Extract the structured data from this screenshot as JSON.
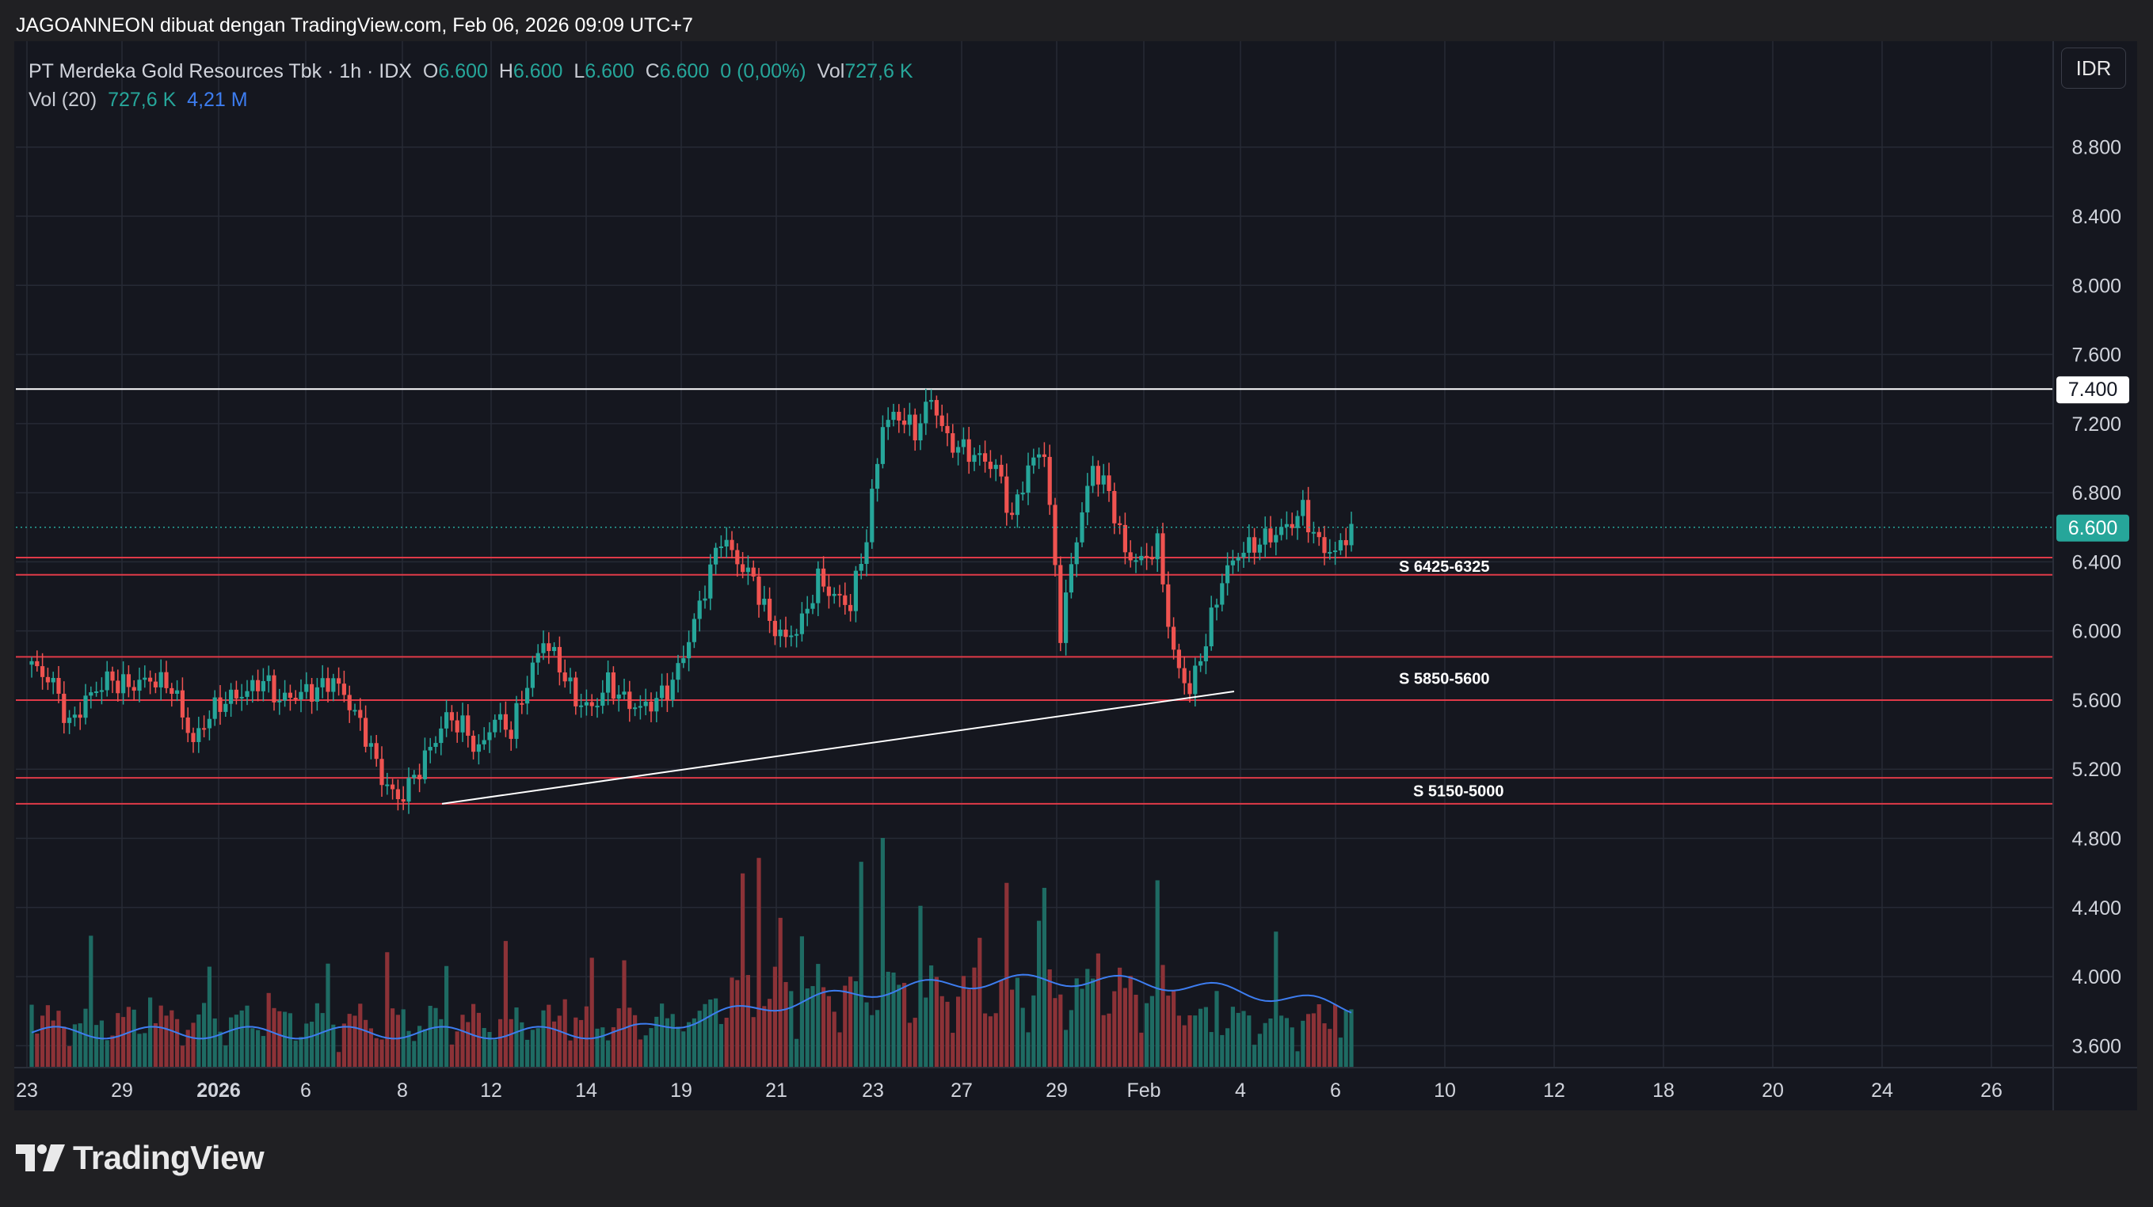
{
  "header": {
    "title": "JAGOANNEON dibuat dengan TradingView.com, Feb 06, 2026 09:09 UTC+7"
  },
  "legend": {
    "symbol": "PT Merdeka Gold Resources Tbk · 1h · IDX",
    "o_label": "O",
    "o_value": "6.600",
    "h_label": "H",
    "h_value": "6.600",
    "l_label": "L",
    "l_value": "6.600",
    "c_label": "C",
    "c_value": "6.600",
    "change": "0 (0,00%)",
    "vol_label": "Vol",
    "vol_value": "727,6 K",
    "vol20_label": "Vol (20)",
    "vol20_value": "727,6 K",
    "vol20_ma": "4,21 M"
  },
  "currency": "IDR",
  "logo": {
    "text": "TradingView",
    "icon": "tradingview-logo-icon"
  },
  "colors": {
    "up": "#26a69a",
    "down": "#ef5350",
    "ma": "#3d7df0",
    "support": "#e03a48",
    "resistance": "#ffffff",
    "background": "#15171f"
  },
  "chart_data": {
    "type": "candlestick",
    "title": "PT Merdeka Gold Resources Tbk · 1h · IDX",
    "currency": "IDR",
    "ylim": [
      3400,
      9000
    ],
    "y_ticks": [
      "8.800",
      "8.400",
      "8.000",
      "7.600",
      "7.200",
      "6.800",
      "6.400",
      "6.000",
      "5.600",
      "5.200",
      "4.800",
      "4.400",
      "4.000",
      "3.600"
    ],
    "x_ticks": [
      "23",
      "29",
      "2026",
      "6",
      "8",
      "12",
      "14",
      "19",
      "21",
      "23",
      "27",
      "29",
      "Feb",
      "4",
      "6",
      "10",
      "12",
      "18",
      "20",
      "24",
      "26"
    ],
    "last_price": 6600,
    "last_price_label": "6.600",
    "resistance": {
      "value": 7400,
      "label": "7.400"
    },
    "support_zones": [
      {
        "label": "S 6425-6325",
        "high": 6425,
        "low": 6325
      },
      {
        "label": "S 5850-5600",
        "high": 5850,
        "low": 5600
      },
      {
        "label": "S 5150-5000",
        "high": 5150,
        "low": 5000
      }
    ],
    "trendline": {
      "from": {
        "date": "Jan 9",
        "price": 5000
      },
      "to": {
        "date": "Feb 3",
        "price": 5650
      }
    },
    "close_path": [
      [
        0,
        5800
      ],
      [
        4,
        5700
      ],
      [
        7,
        5450
      ],
      [
        10,
        5600
      ],
      [
        14,
        5720
      ],
      [
        18,
        5680
      ],
      [
        22,
        5720
      ],
      [
        26,
        5680
      ],
      [
        30,
        5350
      ],
      [
        33,
        5520
      ],
      [
        36,
        5600
      ],
      [
        40,
        5650
      ],
      [
        43,
        5720
      ],
      [
        46,
        5600
      ],
      [
        50,
        5640
      ],
      [
        53,
        5660
      ],
      [
        56,
        5720
      ],
      [
        59,
        5580
      ],
      [
        62,
        5400
      ],
      [
        65,
        5150
      ],
      [
        68,
        5020
      ],
      [
        71,
        5150
      ],
      [
        74,
        5320
      ],
      [
        77,
        5500
      ],
      [
        80,
        5450
      ],
      [
        83,
        5300
      ],
      [
        86,
        5500
      ],
      [
        89,
        5420
      ],
      [
        92,
        5700
      ],
      [
        95,
        5950
      ],
      [
        98,
        5800
      ],
      [
        101,
        5600
      ],
      [
        104,
        5550
      ],
      [
        107,
        5700
      ],
      [
        110,
        5600
      ],
      [
        113,
        5550
      ],
      [
        116,
        5600
      ],
      [
        119,
        5700
      ],
      [
        122,
        5950
      ],
      [
        125,
        6250
      ],
      [
        128,
        6550
      ],
      [
        131,
        6400
      ],
      [
        134,
        6300
      ],
      [
        137,
        6050
      ],
      [
        140,
        5950
      ],
      [
        143,
        6050
      ],
      [
        146,
        6300
      ],
      [
        149,
        6200
      ],
      [
        152,
        6150
      ],
      [
        155,
        6550
      ],
      [
        158,
        7200
      ],
      [
        161,
        7250
      ],
      [
        164,
        7150
      ],
      [
        167,
        7350
      ],
      [
        170,
        7100
      ],
      [
        173,
        7050
      ],
      [
        176,
        7000
      ],
      [
        179,
        6950
      ],
      [
        182,
        6650
      ],
      [
        185,
        6950
      ],
      [
        188,
        7050
      ],
      [
        191,
        6000
      ],
      [
        194,
        6550
      ],
      [
        197,
        6950
      ],
      [
        200,
        6800
      ],
      [
        203,
        6450
      ],
      [
        206,
        6400
      ],
      [
        209,
        6500
      ],
      [
        212,
        5850
      ],
      [
        215,
        5650
      ],
      [
        218,
        5950
      ],
      [
        221,
        6300
      ],
      [
        224,
        6450
      ],
      [
        227,
        6500
      ],
      [
        230,
        6550
      ],
      [
        233,
        6600
      ],
      [
        236,
        6700
      ],
      [
        239,
        6500
      ],
      [
        242,
        6450
      ],
      [
        245,
        6600
      ]
    ],
    "volume": {
      "label": "Vol (20)",
      "last": "727,6 K",
      "ma_last": "4,21 M",
      "spikes": [
        {
          "bar": 135,
          "value": 4200000
        },
        {
          "bar": 158,
          "value": 4600000
        },
        {
          "bar": 181,
          "value": 3700000
        },
        {
          "bar": 188,
          "value": 3600000
        },
        {
          "bar": 176,
          "value": 2600000
        },
        {
          "bar": 104,
          "value": 2200000
        },
        {
          "bar": 139,
          "value": 3000000
        }
      ]
    }
  }
}
